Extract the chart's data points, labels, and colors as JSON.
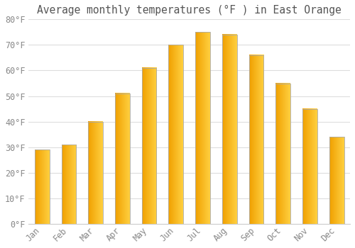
{
  "title": "Average monthly temperatures (°F ) in East Orange",
  "months": [
    "Jan",
    "Feb",
    "Mar",
    "Apr",
    "May",
    "Jun",
    "Jul",
    "Aug",
    "Sep",
    "Oct",
    "Nov",
    "Dec"
  ],
  "values": [
    29,
    31,
    40,
    51,
    61,
    70,
    75,
    74,
    66,
    55,
    45,
    34
  ],
  "bar_color_left": "#F5A800",
  "bar_color_right": "#FFCC30",
  "bar_edge_color": "#AAAAAA",
  "background_color": "#FFFFFF",
  "plot_bg_color": "#FFFFFF",
  "grid_color": "#DDDDDD",
  "ylim": [
    0,
    80
  ],
  "yticks": [
    0,
    10,
    20,
    30,
    40,
    50,
    60,
    70,
    80
  ],
  "ytick_labels": [
    "0°F",
    "10°F",
    "20°F",
    "30°F",
    "40°F",
    "50°F",
    "60°F",
    "70°F",
    "80°F"
  ],
  "title_fontsize": 10.5,
  "tick_fontsize": 8.5,
  "title_color": "#555555",
  "tick_color": "#888888",
  "font_family": "monospace",
  "bar_width": 0.55
}
